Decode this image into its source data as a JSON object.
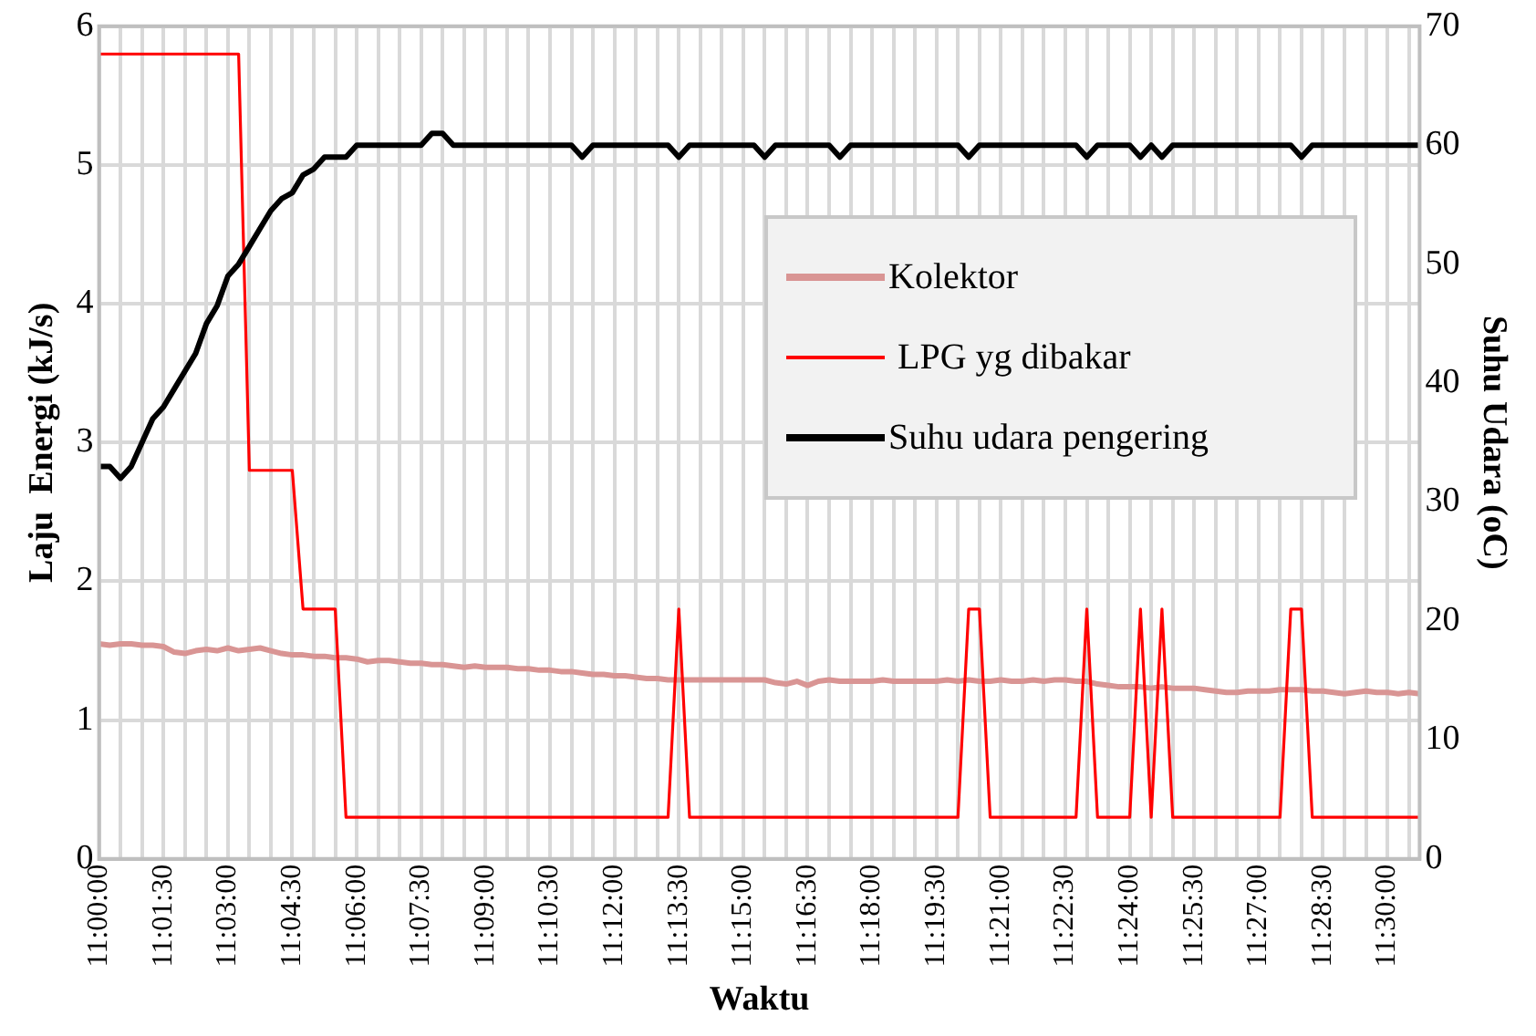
{
  "chart_data": {
    "type": "line",
    "xlabel": "Waktu",
    "ylabel": "Laju  Energi (kJ/s)",
    "y2label": "Suhu Udara (oC)",
    "categories": [
      "11:00:00",
      null,
      null,
      null,
      null,
      null,
      "11:01:30",
      null,
      null,
      null,
      null,
      null,
      "11:03:00",
      null,
      null,
      null,
      null,
      null,
      "11:04:30",
      null,
      null,
      null,
      null,
      null,
      "11:06:00",
      null,
      null,
      null,
      null,
      null,
      "11:07:30",
      null,
      null,
      null,
      null,
      null,
      "11:09:00",
      null,
      null,
      null,
      null,
      null,
      "11:10:30",
      null,
      null,
      null,
      null,
      null,
      "11:12:00",
      null,
      null,
      null,
      null,
      null,
      "11:13:30",
      null,
      null,
      null,
      null,
      null,
      "11:15:00",
      null,
      null,
      null,
      null,
      null,
      "11:16:30",
      null,
      null,
      null,
      null,
      null,
      "11:18:00",
      null,
      null,
      null,
      null,
      null,
      "11:19:30",
      null,
      null,
      null,
      null,
      null,
      "11:21:00",
      null,
      null,
      null,
      null,
      null,
      "11:22:30",
      null,
      null,
      null,
      null,
      null,
      "11:24:00",
      null,
      null,
      null,
      null,
      null,
      "11:25:30",
      null,
      null,
      null,
      null,
      null,
      "11:27:00",
      null,
      null,
      null,
      null,
      null,
      "11:28:30",
      null,
      null,
      null,
      null,
      null,
      "11:30:00",
      null,
      null,
      null
    ],
    "series": [
      {
        "name": "Kolektor",
        "color": "#d99594",
        "values": [
          1.55,
          1.54,
          1.55,
          1.55,
          1.54,
          1.54,
          1.53,
          1.49,
          1.48,
          1.5,
          1.51,
          1.5,
          1.52,
          1.5,
          1.51,
          1.52,
          1.5,
          1.48,
          1.47,
          1.47,
          1.46,
          1.46,
          1.45,
          1.45,
          1.44,
          1.42,
          1.43,
          1.43,
          1.42,
          1.41,
          1.41,
          1.4,
          1.4,
          1.39,
          1.38,
          1.39,
          1.38,
          1.38,
          1.38,
          1.37,
          1.37,
          1.36,
          1.36,
          1.35,
          1.35,
          1.34,
          1.33,
          1.33,
          1.32,
          1.32,
          1.31,
          1.3,
          1.3,
          1.29,
          1.29,
          1.29,
          1.29,
          1.29,
          1.29,
          1.29,
          1.29,
          1.29,
          1.29,
          1.27,
          1.26,
          1.28,
          1.25,
          1.28,
          1.29,
          1.28,
          1.28,
          1.28,
          1.28,
          1.29,
          1.28,
          1.28,
          1.28,
          1.28,
          1.28,
          1.29,
          1.28,
          1.29,
          1.28,
          1.28,
          1.29,
          1.28,
          1.28,
          1.29,
          1.28,
          1.29,
          1.29,
          1.28,
          1.28,
          1.26,
          1.25,
          1.24,
          1.24,
          1.24,
          1.23,
          1.24,
          1.23,
          1.23,
          1.23,
          1.22,
          1.21,
          1.2,
          1.2,
          1.21,
          1.21,
          1.21,
          1.22,
          1.22,
          1.22,
          1.21,
          1.21,
          1.2,
          1.19,
          1.2,
          1.21,
          1.2,
          1.2,
          1.19,
          1.2,
          1.19
        ]
      },
      {
        "name": " LPG yg dibakar",
        "color": "#ff0000",
        "values": [
          5.8,
          5.8,
          5.8,
          5.8,
          5.8,
          5.8,
          5.8,
          5.8,
          5.8,
          5.8,
          5.8,
          5.8,
          5.8,
          5.8,
          2.8,
          2.8,
          2.8,
          2.8,
          2.8,
          1.8,
          1.8,
          1.8,
          1.8,
          0.3,
          0.3,
          0.3,
          0.3,
          0.3,
          0.3,
          0.3,
          0.3,
          0.3,
          0.3,
          0.3,
          0.3,
          0.3,
          0.3,
          0.3,
          0.3,
          0.3,
          0.3,
          0.3,
          0.3,
          0.3,
          0.3,
          0.3,
          0.3,
          0.3,
          0.3,
          0.3,
          0.3,
          0.3,
          0.3,
          0.3,
          1.8,
          0.3,
          0.3,
          0.3,
          0.3,
          0.3,
          0.3,
          0.3,
          0.3,
          0.3,
          0.3,
          0.3,
          0.3,
          0.3,
          0.3,
          0.3,
          0.3,
          0.3,
          0.3,
          0.3,
          0.3,
          0.3,
          0.3,
          0.3,
          0.3,
          0.3,
          0.3,
          1.8,
          1.8,
          0.3,
          0.3,
          0.3,
          0.3,
          0.3,
          0.3,
          0.3,
          0.3,
          0.3,
          1.8,
          0.3,
          0.3,
          0.3,
          0.3,
          1.8,
          0.3,
          1.8,
          0.3,
          0.3,
          0.3,
          0.3,
          0.3,
          0.3,
          0.3,
          0.3,
          0.3,
          0.3,
          0.3,
          1.8,
          1.8,
          0.3,
          0.3,
          0.3,
          0.3,
          0.3,
          0.3,
          0.3,
          0.3,
          0.3,
          0.3,
          0.3
        ]
      },
      {
        "name": "Suhu udara pengering",
        "color": "#000000",
        "axis": "y2",
        "values": [
          33,
          33,
          32,
          33,
          35,
          37,
          38,
          39.5,
          41,
          42.5,
          45,
          46.5,
          49,
          50,
          51.5,
          53,
          54.5,
          55.5,
          56,
          57.5,
          58,
          59,
          59,
          59,
          60,
          60,
          60,
          60,
          60,
          60,
          60,
          61,
          61,
          60,
          60,
          60,
          60,
          60,
          60,
          60,
          60,
          60,
          60,
          60,
          60,
          59,
          60,
          60,
          60,
          60,
          60,
          60,
          60,
          60,
          59,
          60,
          60,
          60,
          60,
          60,
          60,
          60,
          59,
          60,
          60,
          60,
          60,
          60,
          60,
          59,
          60,
          60,
          60,
          60,
          60,
          60,
          60,
          60,
          60,
          60,
          60,
          59,
          60,
          60,
          60,
          60,
          60,
          60,
          60,
          60,
          60,
          60,
          59,
          60,
          60,
          60,
          60,
          59,
          60,
          59,
          60,
          60,
          60,
          60,
          60,
          60,
          60,
          60,
          60,
          60,
          60,
          60,
          59,
          60,
          60,
          60,
          60,
          60,
          60,
          60,
          60,
          60,
          60,
          60
        ]
      }
    ],
    "ylim": [
      0,
      6
    ],
    "yticks": [
      0,
      1,
      2,
      3,
      4,
      5,
      6
    ],
    "y2lim": [
      0,
      70
    ],
    "y2ticks": [
      0,
      10,
      20,
      30,
      40,
      50,
      60,
      70
    ],
    "grid": true,
    "legend": "top right",
    "marker": "none",
    "line_style": "solid"
  }
}
